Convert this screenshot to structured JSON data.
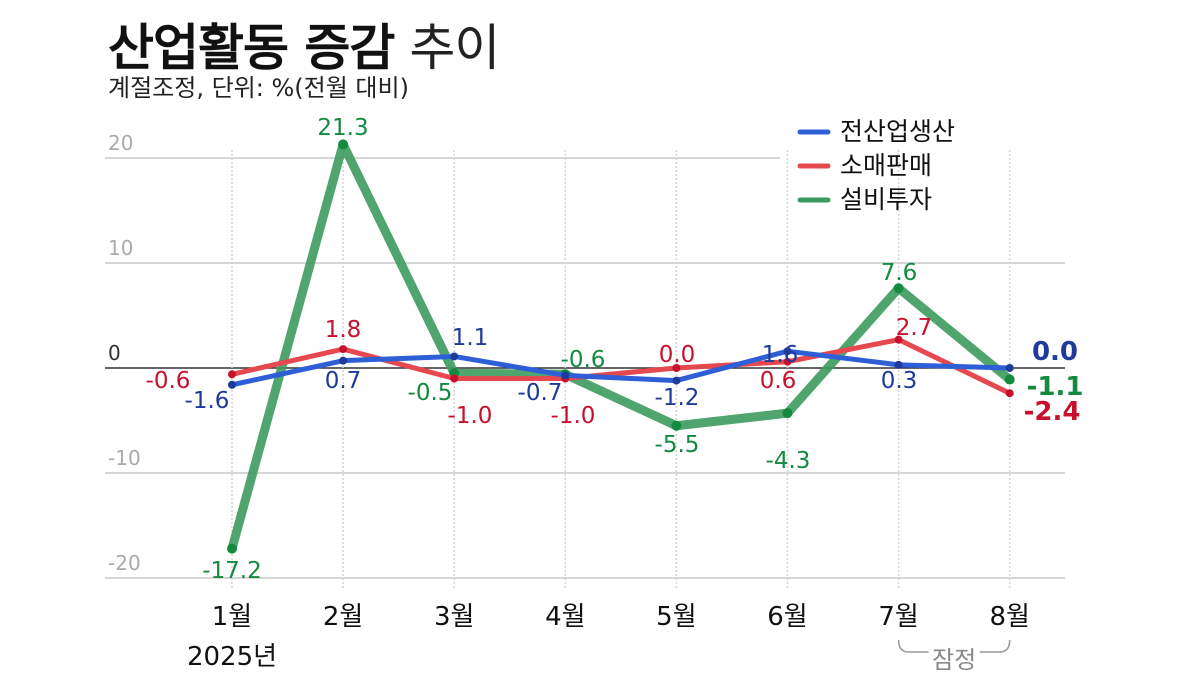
{
  "title_bold": "산업활동 증감",
  "title_light": "추이",
  "subtitle": "계절조정, 단위: %(전월 대비)",
  "chart_data": {
    "type": "line",
    "categories": [
      "1월",
      "2월",
      "3월",
      "4월",
      "5월",
      "6월",
      "7월",
      "8월"
    ],
    "year_label": "2025년",
    "provisional_label": "잠정",
    "ylim": [
      -20,
      20
    ],
    "yticks": [
      20,
      10,
      0,
      -10,
      -20
    ],
    "ytick_labels": [
      "20",
      "10",
      "0",
      "-10",
      "-20"
    ],
    "grid": true,
    "legend_position": "top-right",
    "series": [
      {
        "name": "전산업생산",
        "color": "#2f5fd6",
        "label_color": "#1e3a9a",
        "values": [
          -1.6,
          0.7,
          1.1,
          -0.7,
          -1.2,
          1.6,
          0.3,
          0.0
        ],
        "labels": [
          "-1.6",
          "0.7",
          "1.1",
          "-0.7",
          "-1.2",
          "1.6",
          "0.3",
          "0.0"
        ]
      },
      {
        "name": "소매판매",
        "color": "#e5484f",
        "label_color": "#c8102e",
        "values": [
          -0.6,
          1.8,
          -1.0,
          -1.0,
          0.0,
          0.6,
          2.7,
          -2.4
        ],
        "labels": [
          "-0.6",
          "1.8",
          "-1.0",
          "-1.0",
          "0.0",
          "0.6",
          "2.7",
          "-2.4"
        ]
      },
      {
        "name": "설비투자",
        "color": "#3d9a5e",
        "label_color": "#138a3f",
        "values": [
          -17.2,
          21.3,
          -0.5,
          -0.6,
          -5.5,
          -4.3,
          7.6,
          -1.1
        ],
        "labels": [
          "-17.2",
          "21.3",
          "-0.5",
          "-0.6",
          "-5.5",
          "-4.3",
          "7.6",
          "-1.1"
        ]
      }
    ]
  }
}
